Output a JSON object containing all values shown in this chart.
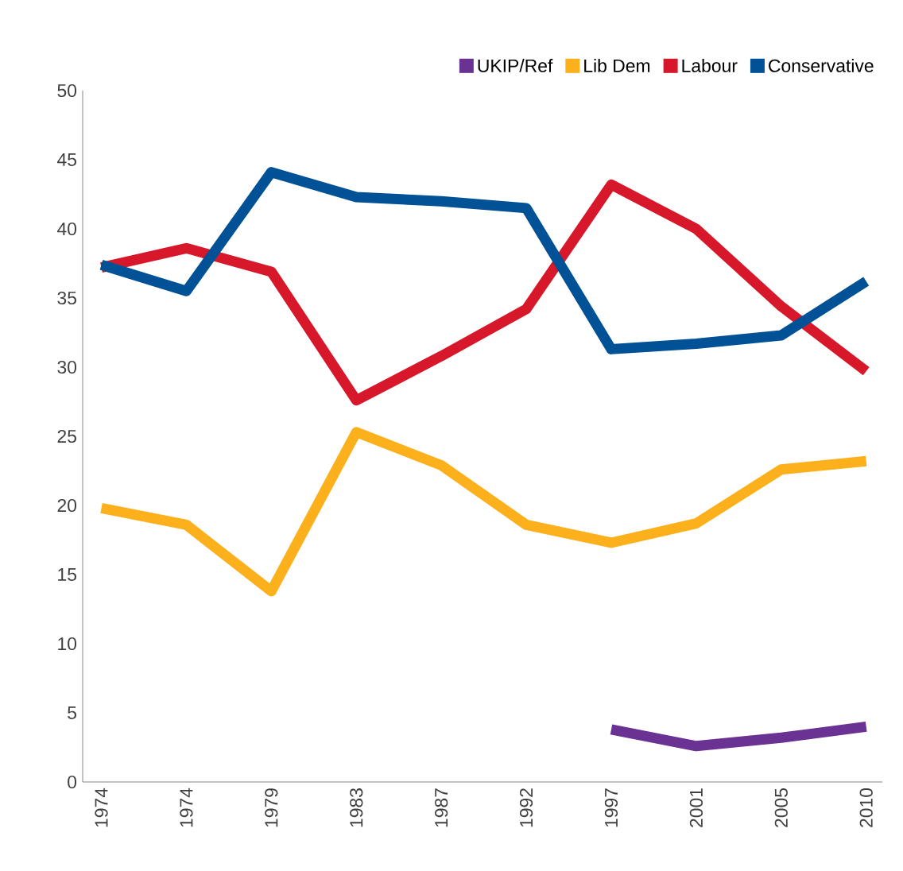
{
  "chart_data": {
    "type": "line",
    "categories": [
      "1974",
      "1974",
      "1979",
      "1983",
      "1987",
      "1992",
      "1997",
      "2001",
      "2005",
      "2010"
    ],
    "series": [
      {
        "name": "UKIP/Ref",
        "color": "#6a3293",
        "values": [
          null,
          null,
          null,
          null,
          null,
          null,
          3.8,
          2.6,
          3.2,
          4.0
        ]
      },
      {
        "name": "Lib Dem",
        "color": "#fbb01c",
        "values": [
          19.8,
          18.6,
          13.8,
          25.3,
          22.9,
          18.6,
          17.3,
          18.7,
          22.6,
          23.2
        ]
      },
      {
        "name": "Labour",
        "color": "#d7182a",
        "values": [
          37.2,
          38.6,
          36.9,
          27.6,
          30.8,
          34.2,
          43.2,
          40.0,
          34.4,
          29.7
        ]
      },
      {
        "name": "Conservative",
        "color": "#005196",
        "values": [
          37.4,
          35.5,
          44.1,
          42.3,
          42.0,
          41.5,
          31.3,
          31.7,
          32.3,
          36.2
        ]
      }
    ],
    "ylim": [
      0,
      50
    ],
    "yticks": [
      0,
      5,
      10,
      15,
      20,
      25,
      30,
      35,
      40,
      45,
      50
    ],
    "legend": "top right",
    "grid": false,
    "marker": "none",
    "line_style": "solid"
  }
}
